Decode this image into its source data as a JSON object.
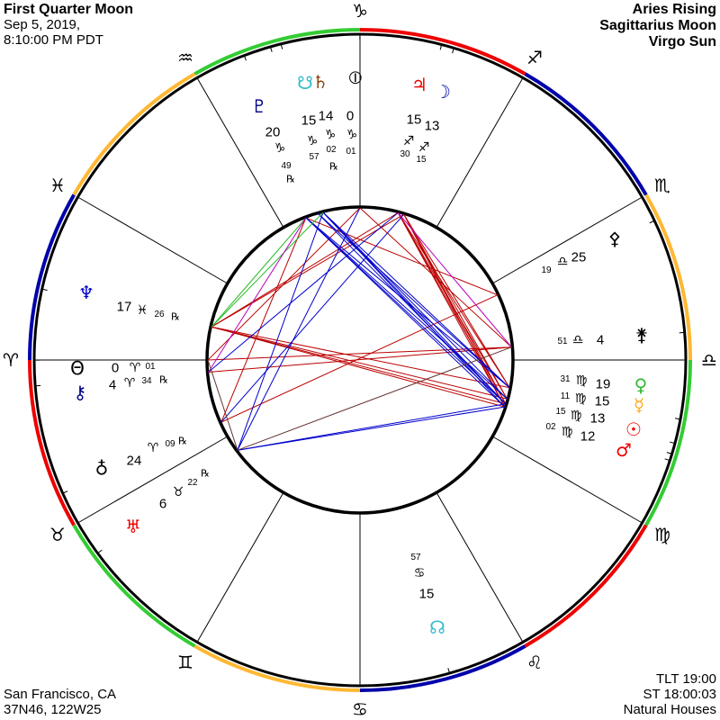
{
  "header_left": {
    "title": "First Quarter Moon",
    "date": "Sep 5, 2019,",
    "time": "8:10:00 PM PDT"
  },
  "header_right": {
    "rising": "Aries Rising",
    "moon": "Sagittarius Moon",
    "sun": "Virgo Sun"
  },
  "footer_left": {
    "place": "San Francisco, CA",
    "coords": "37N46, 122W25"
  },
  "footer_right": {
    "tlt": "TLT 19:00",
    "st": "ST 18:00:03",
    "houses": "Natural Houses"
  },
  "colors": {
    "fire": "#ee0000",
    "earth": "#33cc33",
    "air": "#ffb833",
    "water": "#0000aa",
    "square": "#bb0000",
    "trine": "#0000cc",
    "sextile": "#22bb22",
    "quincunx": "#bb00bb",
    "minor": "#663333"
  },
  "signs": [
    {
      "name": "aries",
      "glyph": "♈",
      "element": "fire"
    },
    {
      "name": "taurus",
      "glyph": "♉",
      "element": "earth"
    },
    {
      "name": "gemini",
      "glyph": "♊",
      "element": "air"
    },
    {
      "name": "cancer",
      "glyph": "♋",
      "element": "water"
    },
    {
      "name": "leo",
      "glyph": "♌",
      "element": "fire"
    },
    {
      "name": "virgo",
      "glyph": "♍",
      "element": "earth"
    },
    {
      "name": "libra",
      "glyph": "♎",
      "element": "air"
    },
    {
      "name": "scorpio",
      "glyph": "♏",
      "element": "water"
    },
    {
      "name": "sagittarius",
      "glyph": "♐",
      "element": "fire"
    },
    {
      "name": "capricorn",
      "glyph": "♑",
      "element": "earth"
    },
    {
      "name": "aquarius",
      "glyph": "♒",
      "element": "air"
    },
    {
      "name": "pisces",
      "glyph": "♓",
      "element": "water"
    }
  ],
  "points": {
    "pluto": {
      "glyph": "♇",
      "color": "#000080",
      "deg": "20",
      "sign": "♑",
      "min": "49",
      "retro": "℞",
      "lon": 290.82
    },
    "south_node": {
      "glyph": "☋",
      "color": "#33bbcc",
      "deg": "15",
      "sign": "♑",
      "min": "57",
      "retro": "",
      "lon": 285.95
    },
    "saturn": {
      "glyph": "♄",
      "color": "#8b4513",
      "deg": "14",
      "sign": "♑",
      "min": "02",
      "retro": "℞",
      "lon": 284.03
    },
    "midheaven": {
      "glyph": "⦶",
      "color": "#000000",
      "deg": "0",
      "sign": "♑",
      "min": "01",
      "retro": "",
      "lon": 270.02
    },
    "jupiter": {
      "glyph": "♃",
      "color": "#ee0000",
      "deg": "15",
      "sign": "♐",
      "min": "30",
      "retro": "",
      "lon": 255.5
    },
    "moon": {
      "glyph": "☽",
      "color": "#0000aa",
      "deg": "13",
      "sign": "♐",
      "min": "15",
      "retro": "",
      "lon": 253.25
    },
    "pallas": {
      "glyph": "⚴",
      "color": "#000000",
      "deg": "25",
      "sign": "♎",
      "min": "19",
      "retro": "",
      "lon": 205.32
    },
    "juno": {
      "glyph": "⚵",
      "color": "#000000",
      "deg": "4",
      "sign": "♎",
      "min": "51",
      "retro": "",
      "lon": 184.85
    },
    "venus": {
      "glyph": "♀",
      "color": "#33bb33",
      "deg": "19",
      "sign": "♍",
      "min": "31",
      "retro": "",
      "lon": 169.52
    },
    "mercury": {
      "glyph": "☿",
      "color": "#ffaa22",
      "deg": "15",
      "sign": "♍",
      "min": "11",
      "retro": "",
      "lon": 165.18
    },
    "sun": {
      "glyph": "☉",
      "color": "#ee0000",
      "deg": "13",
      "sign": "♍",
      "min": "15",
      "retro": "",
      "lon": 163.25
    },
    "mars": {
      "glyph": "♂",
      "color": "#ee0000",
      "deg": "12",
      "sign": "♍",
      "min": "02",
      "retro": "",
      "lon": 162.03
    },
    "neptune": {
      "glyph": "♆",
      "color": "#0000cc",
      "deg": "17",
      "sign": "♓",
      "min": "26",
      "retro": "℞",
      "lon": 347.43
    },
    "ascendant": {
      "glyph": "Θ",
      "color": "#000000",
      "deg": "0",
      "sign": "♈",
      "min": "01",
      "retro": "",
      "lon": 0.02
    },
    "chiron": {
      "glyph": "⚷",
      "color": "#000080",
      "deg": "4",
      "sign": "♈",
      "min": "34",
      "retro": "℞",
      "lon": 4.57
    },
    "eris": {
      "glyph": "♀",
      "color": "#000000",
      "deg": "24",
      "sign": "♈",
      "min": "09",
      "retro": "℞",
      "lon": 24.15
    },
    "uranus": {
      "glyph": "♅",
      "color": "#ee0000",
      "deg": "6",
      "sign": "♉",
      "min": "22",
      "retro": "℞",
      "lon": 36.37
    },
    "north_node": {
      "glyph": "☊",
      "color": "#33bbcc",
      "deg": "15",
      "sign": "♋",
      "min": "57",
      "retro": "",
      "lon": 105.95
    }
  },
  "aspects": [
    [
      "moon",
      "mars",
      "square"
    ],
    [
      "moon",
      "sun",
      "square"
    ],
    [
      "moon",
      "mercury",
      "square"
    ],
    [
      "moon",
      "venus",
      "square"
    ],
    [
      "jupiter",
      "mars",
      "square"
    ],
    [
      "jupiter",
      "sun",
      "square"
    ],
    [
      "jupiter",
      "mercury",
      "square"
    ],
    [
      "jupiter",
      "venus",
      "square"
    ],
    [
      "neptune",
      "mars",
      "square"
    ],
    [
      "neptune",
      "sun",
      "square"
    ],
    [
      "neptune",
      "mercury",
      "square"
    ],
    [
      "neptune",
      "venus",
      "square"
    ],
    [
      "neptune",
      "moon",
      "square"
    ],
    [
      "neptune",
      "jupiter",
      "square"
    ],
    [
      "ascendant",
      "juno",
      "square"
    ],
    [
      "chiron",
      "juno",
      "square"
    ],
    [
      "ascendant",
      "midheaven",
      "square"
    ],
    [
      "eris",
      "pallas",
      "square"
    ],
    [
      "eris",
      "pluto",
      "square"
    ],
    [
      "pluto",
      "pallas",
      "square"
    ],
    [
      "midheaven",
      "juno",
      "square"
    ],
    [
      "saturn",
      "mars",
      "trine"
    ],
    [
      "saturn",
      "sun",
      "trine"
    ],
    [
      "saturn",
      "mercury",
      "trine"
    ],
    [
      "saturn",
      "venus",
      "trine"
    ],
    [
      "pluto",
      "mars",
      "trine"
    ],
    [
      "pluto",
      "sun",
      "trine"
    ],
    [
      "pluto",
      "mercury",
      "trine"
    ],
    [
      "pluto",
      "venus",
      "trine"
    ],
    [
      "south_node",
      "sun",
      "trine"
    ],
    [
      "south_node",
      "venus",
      "trine"
    ],
    [
      "uranus",
      "mars",
      "trine"
    ],
    [
      "uranus",
      "sun",
      "trine"
    ],
    [
      "uranus",
      "midheaven",
      "trine"
    ],
    [
      "uranus",
      "saturn",
      "trine"
    ],
    [
      "eris",
      "moon",
      "trine"
    ],
    [
      "chiron",
      "jupiter",
      "trine"
    ],
    [
      "neptune",
      "pluto",
      "sextile"
    ],
    [
      "neptune",
      "saturn",
      "sextile"
    ],
    [
      "pluto",
      "chiron",
      "quincunx"
    ],
    [
      "jupiter",
      "juno",
      "quincunx"
    ],
    [
      "uranus",
      "juno",
      "minor"
    ],
    [
      "uranus",
      "ascendant",
      "minor"
    ]
  ]
}
